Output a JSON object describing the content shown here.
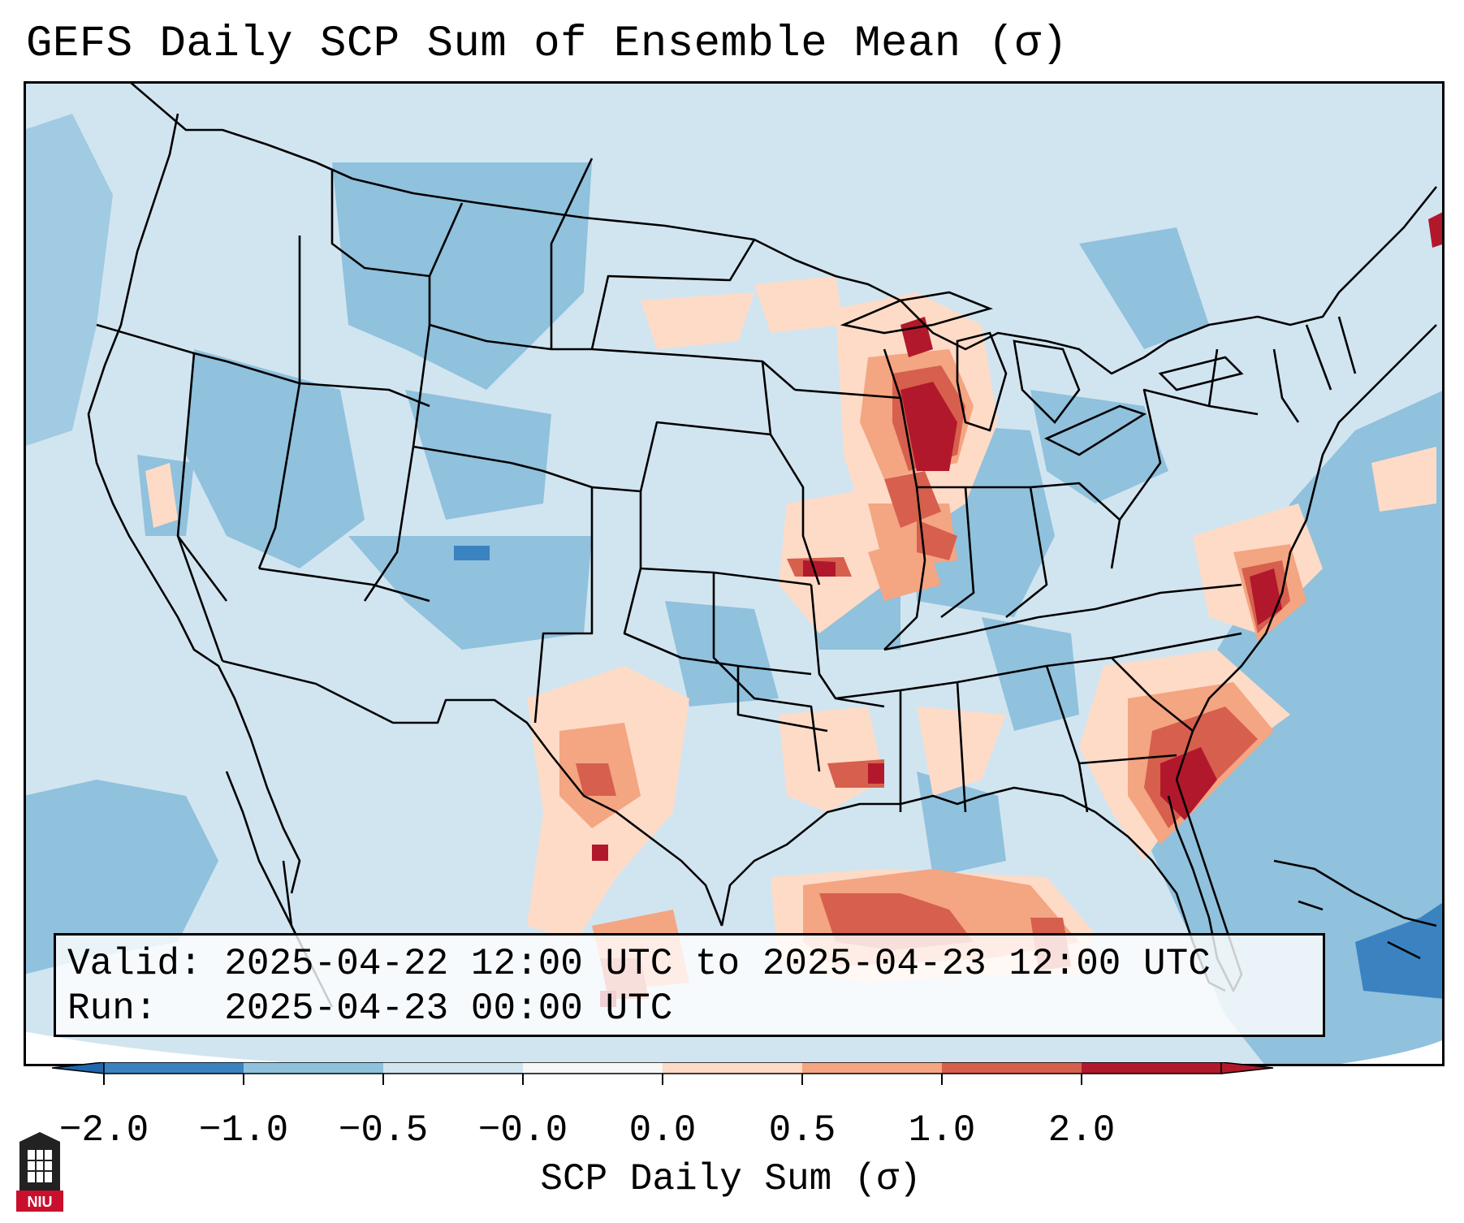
{
  "title": "GEFS Daily SCP Sum of Ensemble Mean (σ)",
  "info": {
    "valid": "Valid: 2025-04-22 12:00 UTC to 2025-04-23 12:00 UTC",
    "run": "Run:   2025-04-23 00:00 UTC"
  },
  "colorbar": {
    "label": "SCP Daily Sum (σ)",
    "ticks": [
      "−2.0",
      "−1.0",
      "−0.5",
      "−0.0",
      "0.0",
      "0.5",
      "1.0",
      "2.0"
    ],
    "colors": [
      "#3a83c0",
      "#90c1dd",
      "#d1e5f0",
      "#f7f7f7",
      "#fddbc7",
      "#f4a582",
      "#d6604d",
      "#b2182b"
    ],
    "under_color": "#2166ac",
    "over_color": "#b2182b",
    "extend": "both"
  },
  "logo": {
    "text": "NIU",
    "icon": "university-tower-icon"
  },
  "map_style": {
    "projection": "lambert-conformal",
    "region": "CONUS",
    "background_color": "#d1e5f0",
    "land_color": "#d1e5f0",
    "ocean_color": "#90c1dd",
    "boundary_color": "#000000"
  }
}
